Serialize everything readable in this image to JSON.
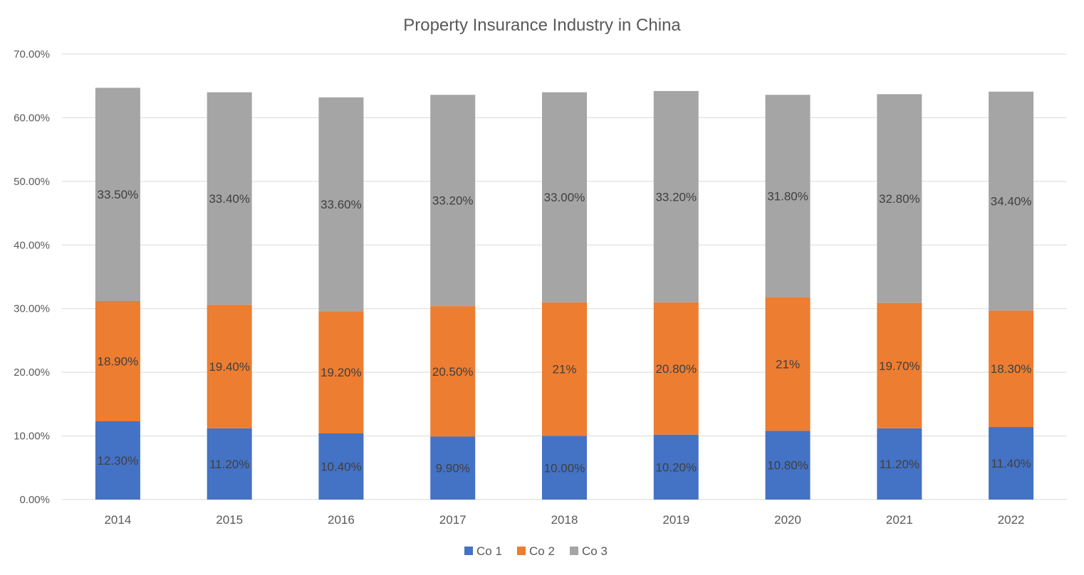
{
  "chart_data": {
    "type": "bar",
    "stacked": true,
    "title": "Property Insurance Industry in China",
    "xlabel": "",
    "ylabel": "",
    "categories": [
      "2014",
      "2015",
      "2016",
      "2017",
      "2018",
      "2019",
      "2020",
      "2021",
      "2022"
    ],
    "series": [
      {
        "name": "Co 1",
        "color": "#4472c4",
        "values": [
          12.3,
          11.2,
          10.4,
          9.9,
          10.0,
          10.2,
          10.8,
          11.2,
          11.4
        ],
        "labels": [
          "12.30%",
          "11.20%",
          "10.40%",
          "9.90%",
          "10.00%",
          "10.20%",
          "10.80%",
          "11.20%",
          "11.40%"
        ]
      },
      {
        "name": "Co 2",
        "color": "#ed7d31",
        "values": [
          18.9,
          19.4,
          19.2,
          20.5,
          21,
          20.8,
          21,
          19.7,
          18.3
        ],
        "labels": [
          "18.90%",
          "19.40%",
          "19.20%",
          "20.50%",
          "21%",
          "20.80%",
          "21%",
          "19.70%",
          "18.30%"
        ]
      },
      {
        "name": "Co 3",
        "color": "#a5a5a5",
        "values": [
          33.5,
          33.4,
          33.6,
          33.2,
          33.0,
          33.2,
          31.8,
          32.8,
          34.4
        ],
        "labels": [
          "33.50%",
          "33.40%",
          "33.60%",
          "33.20%",
          "33.00%",
          "33.20%",
          "31.80%",
          "32.80%",
          "34.40%"
        ]
      }
    ],
    "ylim": [
      0,
      70
    ],
    "yticks": [
      "0.00%",
      "10.00%",
      "20.00%",
      "30.00%",
      "40.00%",
      "50.00%",
      "60.00%",
      "70.00%"
    ],
    "grid": true,
    "legend_position": "bottom"
  }
}
